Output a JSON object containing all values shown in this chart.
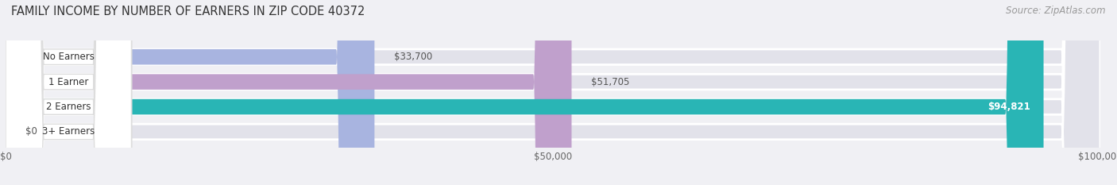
{
  "title": "FAMILY INCOME BY NUMBER OF EARNERS IN ZIP CODE 40372",
  "source": "Source: ZipAtlas.com",
  "categories": [
    "No Earners",
    "1 Earner",
    "2 Earners",
    "3+ Earners"
  ],
  "values": [
    33700,
    51705,
    94821,
    0
  ],
  "bar_colors": [
    "#a8b4e0",
    "#c0a0cc",
    "#29b5b5",
    "#b0bce8"
  ],
  "value_labels": [
    "$33,700",
    "$51,705",
    "$94,821",
    "$0"
  ],
  "value_label_inside": [
    false,
    false,
    true,
    false
  ],
  "xlim": [
    0,
    100000
  ],
  "xticks": [
    0,
    50000,
    100000
  ],
  "xtick_labels": [
    "$0",
    "$50,000",
    "$100,000"
  ],
  "bg_color": "#f0f0f4",
  "bar_bg_color": "#e2e2ea",
  "title_fontsize": 10.5,
  "source_fontsize": 8.5,
  "bar_height": 0.62
}
